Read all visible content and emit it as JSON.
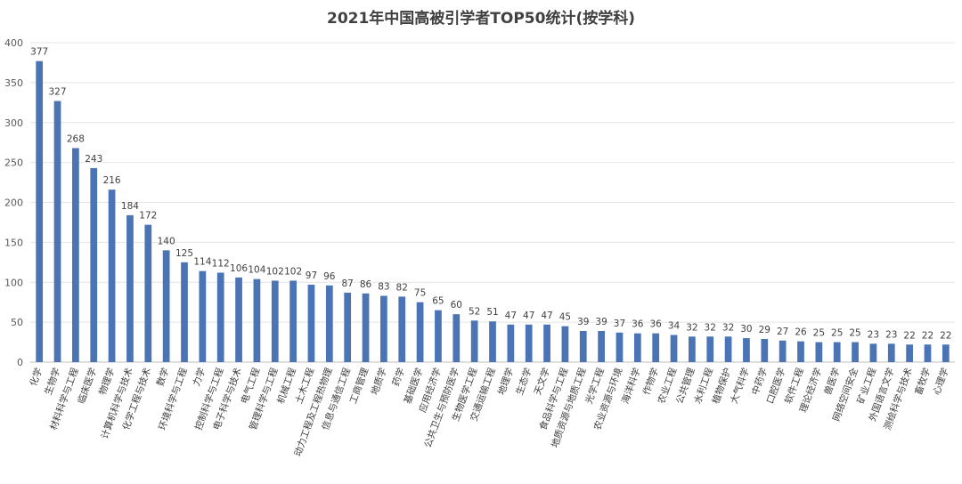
{
  "chart_data": {
    "type": "bar",
    "title": "2021年中国高被引学者TOP50统计(按学科)",
    "xlabel": "",
    "ylabel": "",
    "ylim": [
      0,
      400
    ],
    "yticks": [
      0,
      50,
      100,
      150,
      200,
      250,
      300,
      350,
      400
    ],
    "grid": true,
    "legend": "none",
    "bar_color": "#4a74b4",
    "categories": [
      "化学",
      "生物学",
      "材料科学与工程",
      "临床医学",
      "物理学",
      "计算机科学与技术",
      "化学工程与技术",
      "数学",
      "环境科学与工程",
      "力学",
      "控制科学与工程",
      "电子科学与技术",
      "电气工程",
      "管理科学与工程",
      "机械工程",
      "土木工程",
      "动力工程及工程热物理",
      "信息与通信工程",
      "工商管理",
      "地质学",
      "药学",
      "基础医学",
      "应用经济学",
      "公共卫生与预防医学",
      "生物医学工程",
      "交通运输工程",
      "地理学",
      "生态学",
      "天文学",
      "食品科学与工程",
      "地质资源与地质工程",
      "光学工程",
      "农业资源与环境",
      "海洋科学",
      "作物学",
      "农业工程",
      "公共管理",
      "水利工程",
      "植物保护",
      "大气科学",
      "中药学",
      "口腔医学",
      "软件工程",
      "理论经济学",
      "兽医学",
      "网络空间安全",
      "矿业工程",
      "外国语言文学",
      "测绘科学与技术",
      "畜牧学",
      "心理学"
    ],
    "values": [
      377,
      327,
      268,
      243,
      216,
      184,
      172,
      140,
      125,
      114,
      112,
      106,
      104,
      102,
      102,
      97,
      96,
      87,
      86,
      83,
      82,
      75,
      65,
      60,
      52,
      51,
      47,
      47,
      47,
      45,
      39,
      39,
      37,
      36,
      36,
      34,
      32,
      32,
      32,
      30,
      29,
      27,
      26,
      25,
      25,
      25,
      23,
      23,
      22,
      22,
      22
    ]
  }
}
